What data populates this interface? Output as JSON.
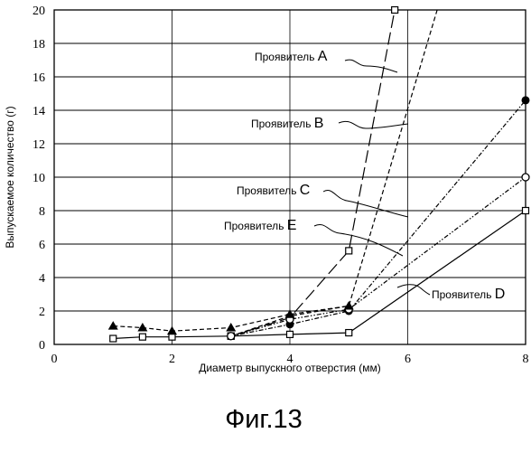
{
  "chart_data": {
    "type": "line",
    "xlabel": "Диаметр выпускного отверстия (мм)",
    "ylabel": "Выпускаемое количество (г)",
    "xlim": [
      0,
      8
    ],
    "ylim": [
      0,
      20
    ],
    "x_ticks": [
      "0",
      "2",
      "4",
      "6",
      "8"
    ],
    "y_ticks": [
      "0",
      "2",
      "4",
      "6",
      "8",
      "10",
      "12",
      "14",
      "16",
      "18",
      "20"
    ],
    "grid": "horizontal",
    "series": [
      {
        "name": "Проявитель A",
        "line_style": "long-dash",
        "marker": "open-square",
        "x": [
          3,
          4,
          5,
          5.78
        ],
        "y": [
          0.5,
          1.6,
          5.6,
          20
        ]
      },
      {
        "name": "Проявитель B",
        "line_style": "dash",
        "marker": "none",
        "x": [
          3,
          4,
          5,
          6.5
        ],
        "y": [
          0.5,
          1.7,
          2.3,
          20
        ]
      },
      {
        "name": "Проявитель C",
        "line_style": "dash-dot",
        "marker": "filled-circle",
        "x": [
          3,
          4,
          5,
          8
        ],
        "y": [
          0.5,
          1.2,
          2.0,
          14.6
        ]
      },
      {
        "name": "Проявитель D",
        "line_style": "solid",
        "marker": "open-square",
        "x": [
          1,
          1.5,
          2,
          3,
          4,
          5,
          8
        ],
        "y": [
          0.35,
          0.45,
          0.45,
          0.5,
          0.6,
          0.7,
          8.0
        ]
      },
      {
        "name": "Проявитель E",
        "line_style": "dash-dot-dot",
        "marker": "open-circle",
        "x": [
          3,
          4,
          5,
          8
        ],
        "y": [
          0.5,
          1.5,
          2.1,
          10.0
        ]
      },
      {
        "name": "",
        "line_style": "dash",
        "marker": "filled-triangle",
        "x": [
          1,
          1.5,
          2,
          3,
          4,
          5
        ],
        "y": [
          1.1,
          1.0,
          0.8,
          1.0,
          1.8,
          2.3
        ]
      }
    ],
    "annotations": [
      {
        "prefix": "Проявитель",
        "letter": "A",
        "series": "Проявитель A"
      },
      {
        "prefix": "Проявитель",
        "letter": "B",
        "series": "Проявитель B"
      },
      {
        "prefix": "Проявитель",
        "letter": "C",
        "series": "Проявитель C"
      },
      {
        "prefix": "Проявитель",
        "letter": "E",
        "series": "Проявитель E"
      },
      {
        "prefix": "Проявитель",
        "letter": "D",
        "series": "Проявитель D"
      }
    ]
  },
  "caption": "Фиг.13"
}
